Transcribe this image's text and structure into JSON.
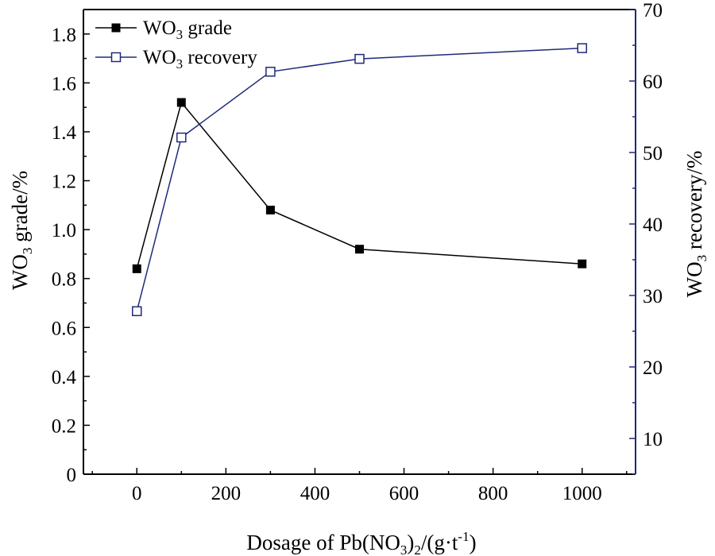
{
  "chart_data": {
    "type": "line",
    "xlabel": {
      "pre": "Dosage of Pb(NO",
      "sub": "3",
      "mid": ")",
      "sub2": "2",
      "post": "/(g·t",
      "sup": "-1",
      "end": ")"
    },
    "ylabel_left": {
      "pre": "WO",
      "sub": "3",
      "post": " grade/%"
    },
    "ylabel_right": {
      "pre": "WO",
      "sub": "3",
      "post": " recovery/%"
    },
    "xlim": [
      -120,
      1120
    ],
    "ylim_left": [
      0,
      1.9
    ],
    "ylim_right": [
      5,
      70
    ],
    "x_ticks": [
      "0",
      "200",
      "400",
      "600",
      "800",
      "1000"
    ],
    "y_left_ticks": [
      "0",
      "0.2",
      "0.4",
      "0.6",
      "0.8",
      "1.0",
      "1.2",
      "1.4",
      "1.6",
      "1.8"
    ],
    "y_right_ticks": [
      "10",
      "20",
      "30",
      "40",
      "50",
      "60",
      "70"
    ],
    "x": [
      0,
      100,
      300,
      500,
      1000
    ],
    "series": [
      {
        "name": {
          "pre": "WO",
          "sub": "3",
          "post": " grade"
        },
        "axis": "left",
        "values": [
          0.84,
          1.52,
          1.08,
          0.92,
          0.86
        ],
        "color": "#000000",
        "marker": "filled-square"
      },
      {
        "name": {
          "pre": "WO",
          "sub": "3",
          "post": " recovery"
        },
        "axis": "right",
        "values": [
          27.8,
          52.1,
          61.3,
          63.1,
          64.6
        ],
        "color": "#1f2a7a",
        "marker": "open-square"
      }
    ],
    "legend_position": "top-left",
    "grid": false
  }
}
